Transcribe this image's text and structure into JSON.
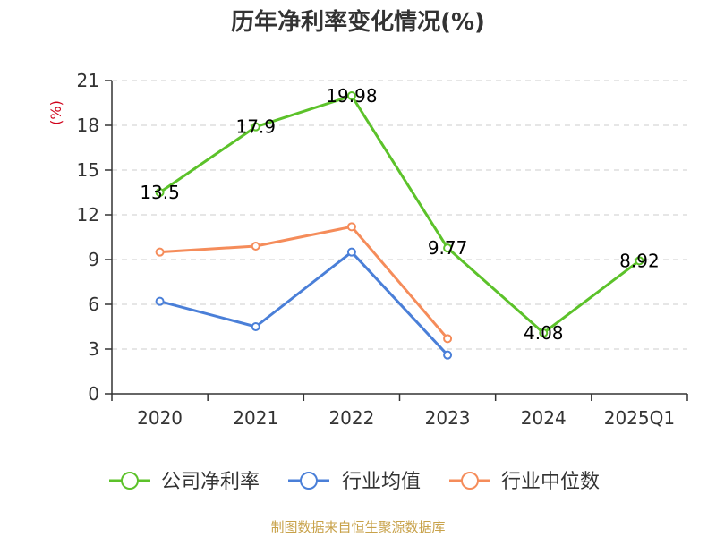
{
  "chart_data": {
    "type": "line",
    "title": "历年净利率变化情况(%)",
    "ylabel": "(%)",
    "categories": [
      "2020",
      "2021",
      "2022",
      "2023",
      "2024",
      "2025Q1"
    ],
    "yticks": [
      0,
      3,
      6,
      9,
      12,
      15,
      18,
      21
    ],
    "ylim": [
      0,
      21
    ],
    "grid": true,
    "legend_position": "bottom",
    "series": [
      {
        "name": "公司净利率",
        "color": "#5cc22a",
        "values": [
          13.5,
          17.9,
          19.98,
          9.77,
          4.08,
          8.92
        ],
        "labels": [
          "13.5",
          "17.9",
          "19.98",
          "9.77",
          "4.08",
          "8.92"
        ]
      },
      {
        "name": "行业均值",
        "color": "#4a7fd8",
        "values": [
          6.2,
          4.5,
          9.5,
          2.6,
          null,
          null
        ]
      },
      {
        "name": "行业中位数",
        "color": "#f58c5a",
        "values": [
          9.5,
          9.9,
          11.2,
          3.7,
          null,
          null
        ]
      }
    ]
  },
  "source": "制图数据来自恒生聚源数据库"
}
